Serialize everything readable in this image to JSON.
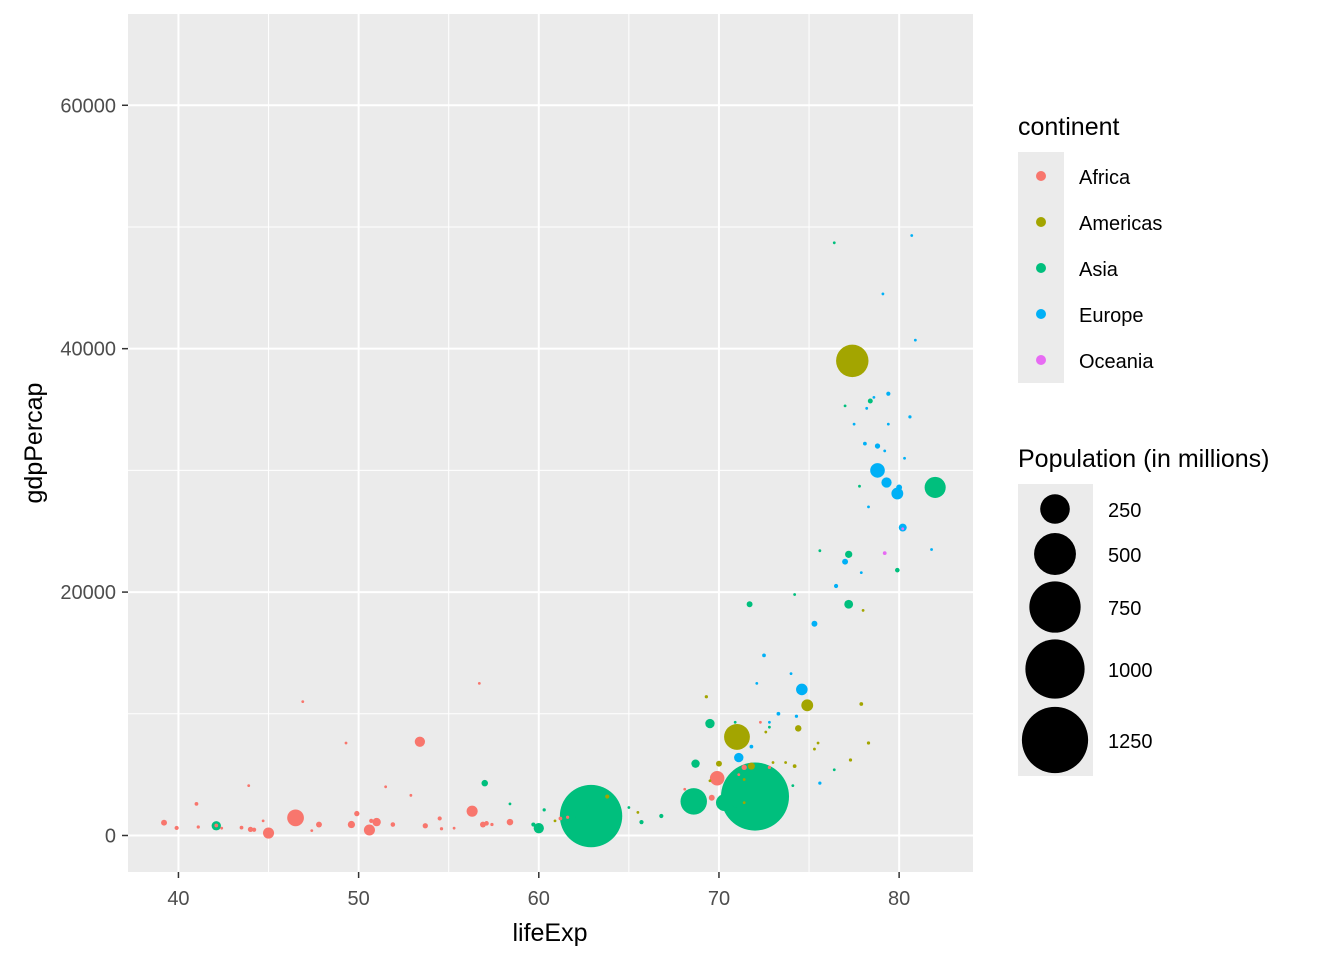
{
  "chart_data": {
    "type": "scatter",
    "title": "",
    "xlabel": "lifeExp",
    "ylabel": "gdpPercap",
    "xlim": [
      37.2,
      84.1
    ],
    "ylim": [
      -3000,
      67500
    ],
    "x_ticks": [
      40,
      50,
      60,
      70,
      80
    ],
    "y_ticks": [
      0,
      20000,
      40000,
      60000
    ],
    "x_tick_labels": [
      "40",
      "50",
      "60",
      "70",
      "80"
    ],
    "y_tick_labels": [
      "0",
      "20000",
      "40000",
      "60000"
    ],
    "grid": true,
    "background": "#ebebeb",
    "legend_position": "right",
    "color_legend": {
      "title": "continent",
      "entries": [
        {
          "label": "Africa",
          "color": "#F8766D"
        },
        {
          "label": "Americas",
          "color": "#A3A500"
        },
        {
          "label": "Asia",
          "color": "#00BF7D"
        },
        {
          "label": "Europe",
          "color": "#00B0F6"
        },
        {
          "label": "Oceania",
          "color": "#E76BF3"
        }
      ]
    },
    "size_legend": {
      "title": "Population (in millions)",
      "entries": [
        {
          "label": "250",
          "value": 250
        },
        {
          "label": "500",
          "value": 500
        },
        {
          "label": "750",
          "value": 750
        },
        {
          "label": "1000",
          "value": 1000
        },
        {
          "label": "1250",
          "value": 1250
        }
      ]
    },
    "series": [
      {
        "name": "Africa",
        "color": "#F8766D",
        "points": [
          [
            39.2,
            1050,
            10
          ],
          [
            39.9,
            620,
            5
          ],
          [
            41.0,
            2600,
            4
          ],
          [
            41.1,
            700,
            3
          ],
          [
            42.1,
            820,
            4
          ],
          [
            42.4,
            600,
            2
          ],
          [
            43.5,
            650,
            4
          ],
          [
            43.9,
            4100,
            1
          ],
          [
            44.0,
            500,
            8
          ],
          [
            44.2,
            470,
            5
          ],
          [
            44.7,
            1200,
            2
          ],
          [
            45.0,
            200,
            35
          ],
          [
            46.5,
            1450,
            80
          ],
          [
            46.9,
            11000,
            1
          ],
          [
            47.4,
            400,
            2
          ],
          [
            47.8,
            900,
            10
          ],
          [
            49.3,
            7600,
            1
          ],
          [
            49.6,
            900,
            15
          ],
          [
            49.9,
            1800,
            8
          ],
          [
            50.6,
            450,
            35
          ],
          [
            50.7,
            1200,
            5
          ],
          [
            51.0,
            1100,
            20
          ],
          [
            51.5,
            4000,
            1
          ],
          [
            51.9,
            900,
            6
          ],
          [
            52.9,
            3300,
            1
          ],
          [
            53.4,
            7700,
            30
          ],
          [
            53.7,
            800,
            8
          ],
          [
            54.5,
            1400,
            5
          ],
          [
            54.6,
            550,
            3
          ],
          [
            55.3,
            600,
            2
          ],
          [
            56.3,
            2000,
            35
          ],
          [
            56.7,
            12500,
            1
          ],
          [
            56.9,
            900,
            10
          ],
          [
            57.1,
            1000,
            6
          ],
          [
            57.4,
            900,
            3
          ],
          [
            58.4,
            1100,
            12
          ],
          [
            61.2,
            1400,
            4
          ],
          [
            61.6,
            1500,
            3
          ],
          [
            68.1,
            3800,
            1
          ],
          [
            69.6,
            3100,
            10
          ],
          [
            69.9,
            4700,
            60
          ],
          [
            71.1,
            5000,
            2
          ],
          [
            71.4,
            5600,
            8
          ],
          [
            72.3,
            9300,
            1
          ],
          [
            72.8,
            5600,
            3
          ]
        ]
      },
      {
        "name": "Americas",
        "color": "#A3A500",
        "points": [
          [
            60.9,
            1200,
            1
          ],
          [
            63.8,
            3200,
            5
          ],
          [
            65.5,
            1900,
            2
          ],
          [
            69.3,
            11400,
            3
          ],
          [
            69.5,
            4500,
            2
          ],
          [
            70.0,
            5900,
            10
          ],
          [
            71.0,
            8100,
            190
          ],
          [
            71.4,
            2700,
            1
          ],
          [
            71.4,
            4600,
            2
          ],
          [
            71.8,
            5700,
            14
          ],
          [
            72.6,
            8500,
            2
          ],
          [
            73.0,
            6000,
            1
          ],
          [
            73.7,
            6000,
            2
          ],
          [
            74.2,
            5700,
            4
          ],
          [
            74.4,
            8800,
            12
          ],
          [
            74.9,
            10700,
            40
          ],
          [
            75.3,
            7100,
            1
          ],
          [
            75.5,
            7600,
            2
          ],
          [
            77.3,
            6200,
            3
          ],
          [
            77.9,
            10800,
            4
          ],
          [
            77.4,
            39000,
            300
          ],
          [
            78.0,
            18500,
            2
          ],
          [
            78.3,
            7600,
            3
          ]
        ]
      },
      {
        "name": "Asia",
        "color": "#00BF7D",
        "points": [
          [
            42.1,
            800,
            25
          ],
          [
            57.0,
            4300,
            12
          ],
          [
            58.4,
            2600,
            1
          ],
          [
            59.7,
            900,
            5
          ],
          [
            60.0,
            600,
            30
          ],
          [
            60.3,
            2100,
            3
          ],
          [
            61.4,
            1100,
            1
          ],
          [
            62.1,
            1500,
            3
          ],
          [
            62.7,
            2400,
            2
          ],
          [
            62.9,
            1600,
            1110
          ],
          [
            65.0,
            2300,
            1
          ],
          [
            65.7,
            1100,
            5
          ],
          [
            66.8,
            1600,
            5
          ],
          [
            68.6,
            2800,
            200
          ],
          [
            68.7,
            5900,
            20
          ],
          [
            69.5,
            9200,
            25
          ],
          [
            70.3,
            2700,
            80
          ],
          [
            70.9,
            9300,
            2
          ],
          [
            70.9,
            2400,
            3
          ],
          [
            71.7,
            19000,
            10
          ],
          [
            72.8,
            8900,
            2
          ],
          [
            72.0,
            3200,
            1320
          ],
          [
            74.1,
            4100,
            2
          ],
          [
            74.2,
            19800,
            2
          ],
          [
            75.6,
            23400,
            1
          ],
          [
            76.4,
            48700,
            1
          ],
          [
            76.4,
            5400,
            1
          ],
          [
            77.0,
            35300,
            2
          ],
          [
            77.2,
            19000,
            22
          ],
          [
            77.2,
            23100,
            15
          ],
          [
            77.8,
            28700,
            2
          ],
          [
            78.4,
            35700,
            7
          ],
          [
            79.9,
            21800,
            6
          ],
          [
            82.0,
            28600,
            127
          ]
        ]
      },
      {
        "name": "Europe",
        "color": "#00B0F6",
        "points": [
          [
            71.1,
            6400,
            25
          ],
          [
            71.8,
            7300,
            4
          ],
          [
            72.8,
            9300,
            1
          ],
          [
            72.1,
            12500,
            1
          ],
          [
            72.5,
            14800,
            4
          ],
          [
            73.3,
            10000,
            4
          ],
          [
            74.0,
            13300,
            2
          ],
          [
            74.6,
            12000,
            38
          ],
          [
            75.3,
            17400,
            10
          ],
          [
            74.3,
            9800,
            3
          ],
          [
            75.6,
            4300,
            3
          ],
          [
            76.5,
            20500,
            5
          ],
          [
            77.0,
            22500,
            10
          ],
          [
            77.5,
            33800,
            1
          ],
          [
            77.9,
            21600,
            2
          ],
          [
            78.1,
            32200,
            4
          ],
          [
            78.3,
            27000,
            2
          ],
          [
            78.6,
            36000,
            2
          ],
          [
            78.8,
            32000,
            8
          ],
          [
            78.8,
            30000,
            61
          ],
          [
            79.2,
            31600,
            1
          ],
          [
            79.3,
            29000,
            30
          ],
          [
            79.4,
            36300,
            5
          ],
          [
            79.4,
            33800,
            1
          ],
          [
            79.9,
            28100,
            40
          ],
          [
            80.0,
            28600,
            10
          ],
          [
            80.3,
            31000,
            1
          ],
          [
            80.6,
            34400,
            3
          ],
          [
            80.7,
            49300,
            1
          ],
          [
            80.9,
            40700,
            2
          ],
          [
            80.2,
            25300,
            18
          ],
          [
            79.1,
            44500,
            1
          ],
          [
            78.2,
            35100,
            1
          ],
          [
            81.8,
            23500,
            1
          ]
        ]
      },
      {
        "name": "Oceania",
        "color": "#E76BF3",
        "points": [
          [
            79.2,
            23200,
            4
          ],
          [
            80.2,
            25200,
            1
          ]
        ]
      }
    ]
  }
}
